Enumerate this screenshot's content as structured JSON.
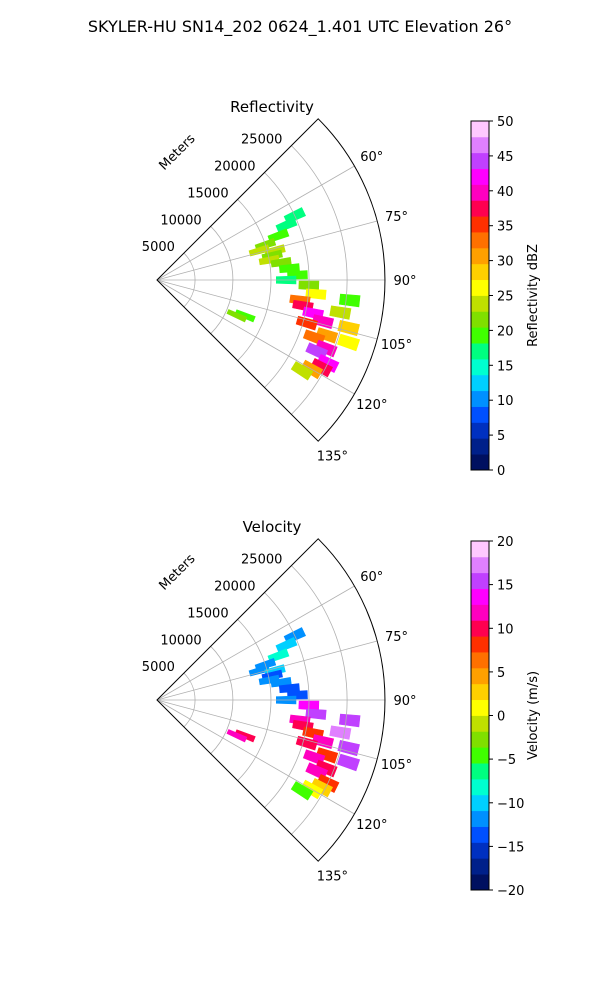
{
  "figure_title": "SKYLER-HU  SN14_202  0624_1.401 UTC Elevation 26°",
  "colors": {
    "grid": "#b0b0b0",
    "axis": "#000000",
    "background": "#ffffff"
  },
  "chart_data": [
    {
      "type": "heatmap",
      "projection": "polar sector (PPI radar scan)",
      "title": "Reflectivity",
      "radial_axis_label": "Meters",
      "radial_ticks": [
        5000,
        10000,
        15000,
        20000,
        25000
      ],
      "radial_tick_labels": [
        "5000",
        "10000",
        "15000",
        "20000",
        "25000"
      ],
      "rlim": [
        0,
        30000
      ],
      "azimuth_range_deg": [
        45,
        135
      ],
      "azimuth_ticks_deg": [
        60,
        75,
        90,
        105,
        120,
        135
      ],
      "azimuth_tick_labels": [
        "60°",
        "75°",
        "90°",
        "105°",
        "120°",
        "135°"
      ],
      "grid": true,
      "colorbar": {
        "label": "Reflectivity dBZ",
        "range": [
          0,
          50
        ],
        "ticks": [
          0,
          5,
          10,
          15,
          20,
          25,
          30,
          35,
          40,
          45,
          50
        ],
        "tick_labels": [
          "0",
          "5",
          "10",
          "15",
          "20",
          "25",
          "30",
          "35",
          "40",
          "45",
          "50"
        ],
        "colors": [
          "#001060",
          "#00208a",
          "#0030c0",
          "#0050ff",
          "#0090ff",
          "#00d0ff",
          "#00ffd0",
          "#00ff80",
          "#40ff00",
          "#80e000",
          "#c0e000",
          "#ffff00",
          "#ffd000",
          "#ffa000",
          "#ff7000",
          "#ff3000",
          "#ff0050",
          "#ff00c0",
          "#ff00ff",
          "#c040ff",
          "#e080ff",
          "#ffc8ff"
        ]
      },
      "cells": [
        {
          "az": 65,
          "r": 20000,
          "v": 16
        },
        {
          "az": 67,
          "r": 18500,
          "v": 18
        },
        {
          "az": 70,
          "r": 17000,
          "v": 20
        },
        {
          "az": 72,
          "r": 15000,
          "v": 22
        },
        {
          "az": 74,
          "r": 14000,
          "v": 24
        },
        {
          "az": 76,
          "r": 16000,
          "v": 23
        },
        {
          "az": 78,
          "r": 15500,
          "v": 21
        },
        {
          "az": 80,
          "r": 15000,
          "v": 24
        },
        {
          "az": 82,
          "r": 16500,
          "v": 22
        },
        {
          "az": 85,
          "r": 17500,
          "v": 20
        },
        {
          "az": 88,
          "r": 18500,
          "v": 19
        },
        {
          "az": 90,
          "r": 17000,
          "v": 18
        },
        {
          "az": 92,
          "r": 20000,
          "v": 22
        },
        {
          "az": 95,
          "r": 21000,
          "v": 26
        },
        {
          "az": 98,
          "r": 19000,
          "v": 32
        },
        {
          "az": 100,
          "r": 19500,
          "v": 38
        },
        {
          "az": 102,
          "r": 21000,
          "v": 42
        },
        {
          "az": 104,
          "r": 22500,
          "v": 40
        },
        {
          "az": 106,
          "r": 20500,
          "v": 36
        },
        {
          "az": 108,
          "r": 23500,
          "v": 30
        },
        {
          "az": 110,
          "r": 22000,
          "v": 34
        },
        {
          "az": 112,
          "r": 24000,
          "v": 40
        },
        {
          "az": 114,
          "r": 23000,
          "v": 44
        },
        {
          "az": 116,
          "r": 25000,
          "v": 42
        },
        {
          "az": 118,
          "r": 24500,
          "v": 38
        },
        {
          "az": 120,
          "r": 23500,
          "v": 30
        },
        {
          "az": 122,
          "r": 22500,
          "v": 24
        },
        {
          "az": 108,
          "r": 26500,
          "v": 26
        },
        {
          "az": 104,
          "r": 26000,
          "v": 28
        },
        {
          "az": 100,
          "r": 24500,
          "v": 24
        },
        {
          "az": 96,
          "r": 25500,
          "v": 20
        },
        {
          "az": 112,
          "r": 12500,
          "v": 20
        },
        {
          "az": 114,
          "r": 11500,
          "v": 22
        }
      ]
    },
    {
      "type": "heatmap",
      "projection": "polar sector (PPI radar scan)",
      "title": "Velocity",
      "radial_axis_label": "Meters",
      "radial_ticks": [
        5000,
        10000,
        15000,
        20000,
        25000
      ],
      "radial_tick_labels": [
        "5000",
        "10000",
        "15000",
        "20000",
        "25000"
      ],
      "rlim": [
        0,
        30000
      ],
      "azimuth_range_deg": [
        45,
        135
      ],
      "azimuth_ticks_deg": [
        60,
        75,
        90,
        105,
        120,
        135
      ],
      "azimuth_tick_labels": [
        "60°",
        "75°",
        "90°",
        "105°",
        "120°",
        "135°"
      ],
      "grid": true,
      "colorbar": {
        "label": "Velocity (m/s)",
        "range": [
          -20,
          20
        ],
        "ticks": [
          -20,
          -15,
          -10,
          -5,
          0,
          5,
          10,
          15,
          20
        ],
        "tick_labels": [
          "−20",
          "−15",
          "−10",
          "−5",
          "0",
          "5",
          "10",
          "15",
          "20"
        ],
        "colors": [
          "#001060",
          "#00208a",
          "#0030c0",
          "#0050ff",
          "#0090ff",
          "#00d0ff",
          "#00ffd0",
          "#00ff80",
          "#40ff00",
          "#80e000",
          "#c0e000",
          "#ffff00",
          "#ffd000",
          "#ffa000",
          "#ff7000",
          "#ff3000",
          "#ff0050",
          "#ff00c0",
          "#ff00ff",
          "#c040ff",
          "#e080ff",
          "#ffc8ff"
        ]
      },
      "cells": [
        {
          "az": 65,
          "r": 20000,
          "v": -11
        },
        {
          "az": 67,
          "r": 18500,
          "v": -10
        },
        {
          "az": 70,
          "r": 17000,
          "v": -9
        },
        {
          "az": 72,
          "r": 15000,
          "v": -12
        },
        {
          "az": 74,
          "r": 14000,
          "v": -11
        },
        {
          "az": 76,
          "r": 16000,
          "v": -10
        },
        {
          "az": 78,
          "r": 15500,
          "v": -13
        },
        {
          "az": 80,
          "r": 15000,
          "v": -12
        },
        {
          "az": 82,
          "r": 16500,
          "v": -11
        },
        {
          "az": 85,
          "r": 17500,
          "v": -14
        },
        {
          "az": 88,
          "r": 18500,
          "v": -13
        },
        {
          "az": 90,
          "r": 17000,
          "v": -12
        },
        {
          "az": 92,
          "r": 20000,
          "v": 14
        },
        {
          "az": 95,
          "r": 21000,
          "v": 16
        },
        {
          "az": 98,
          "r": 19000,
          "v": 11
        },
        {
          "az": 100,
          "r": 19500,
          "v": 10
        },
        {
          "az": 102,
          "r": 21000,
          "v": 9
        },
        {
          "az": 104,
          "r": 22500,
          "v": 12
        },
        {
          "az": 106,
          "r": 20500,
          "v": 10
        },
        {
          "az": 108,
          "r": 23500,
          "v": 9
        },
        {
          "az": 110,
          "r": 22000,
          "v": 11
        },
        {
          "az": 112,
          "r": 24000,
          "v": 10
        },
        {
          "az": 114,
          "r": 23000,
          "v": 12
        },
        {
          "az": 116,
          "r": 25000,
          "v": 9
        },
        {
          "az": 118,
          "r": 24500,
          "v": 3
        },
        {
          "az": 120,
          "r": 23500,
          "v": 1
        },
        {
          "az": 122,
          "r": 22500,
          "v": -4
        },
        {
          "az": 108,
          "r": 26500,
          "v": 15
        },
        {
          "az": 104,
          "r": 26000,
          "v": 16
        },
        {
          "az": 100,
          "r": 24500,
          "v": 17
        },
        {
          "az": 96,
          "r": 25500,
          "v": 15
        },
        {
          "az": 112,
          "r": 12500,
          "v": 10
        },
        {
          "az": 114,
          "r": 11500,
          "v": 12
        }
      ]
    }
  ]
}
